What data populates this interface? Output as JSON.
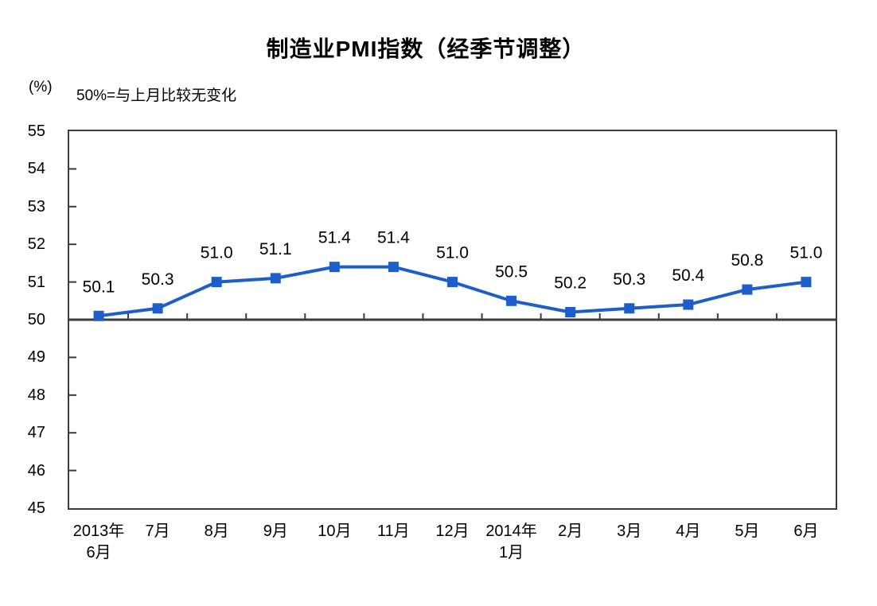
{
  "chart_data": {
    "type": "line",
    "title": "制造业PMI指数（经季节调整）",
    "unit_label": "(%)",
    "note": "50%=与上月比较无变化",
    "categories": [
      "2013年6月",
      "7月",
      "8月",
      "9月",
      "10月",
      "11月",
      "12月",
      "2014年1月",
      "2月",
      "3月",
      "4月",
      "5月",
      "6月"
    ],
    "x_tick_label_lines": [
      [
        "2013年",
        "6月"
      ],
      [
        "7月"
      ],
      [
        "8月"
      ],
      [
        "9月"
      ],
      [
        "10月"
      ],
      [
        "11月"
      ],
      [
        "12月"
      ],
      [
        "2014年",
        "1月"
      ],
      [
        "2月"
      ],
      [
        "3月"
      ],
      [
        "4月"
      ],
      [
        "5月"
      ],
      [
        "6月"
      ]
    ],
    "series": [
      {
        "name": "制造业PMI指数",
        "values": [
          50.1,
          50.3,
          51.0,
          51.1,
          51.4,
          51.4,
          51.0,
          50.5,
          50.2,
          50.3,
          50.4,
          50.8,
          51.0
        ]
      }
    ],
    "data_labels": [
      "50.1",
      "50.3",
      "51.0",
      "51.1",
      "51.4",
      "51.4",
      "51.0",
      "50.5",
      "50.2",
      "50.3",
      "50.4",
      "50.8",
      "51.0"
    ],
    "ylim": [
      45,
      55
    ],
    "y_ticks": [
      55,
      54,
      53,
      52,
      51,
      50,
      49,
      48,
      47,
      46,
      45
    ],
    "reference_line": 50,
    "xlabel": "",
    "ylabel": "(%)",
    "grid": "off",
    "legend": "none",
    "colors": {
      "line": "#1e5ec9",
      "marker": "#1e5ec9",
      "axis": "#3c3c3c",
      "text": "#000000",
      "background": "#ffffff"
    }
  }
}
